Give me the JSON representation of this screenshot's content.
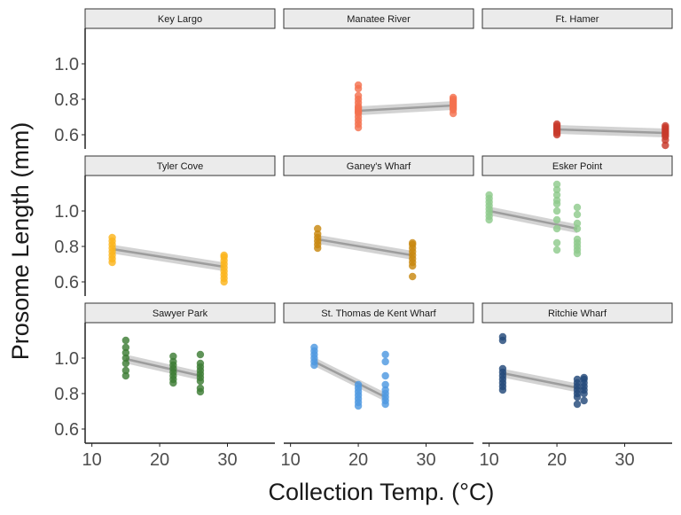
{
  "chart_data": {
    "type": "scatter",
    "xlabel": "Collection Temp. (°C)",
    "ylabel": "Prosome Length (mm)",
    "xlim": [
      9,
      37
    ],
    "ylim": [
      0.52,
      1.2
    ],
    "x_ticks": [
      10,
      20,
      30
    ],
    "y_ticks": [
      0.6,
      0.8,
      1.0
    ],
    "x_tick_labels": [
      "10",
      "20",
      "30"
    ],
    "y_tick_labels": [
      "0.6",
      "0.8",
      "1.0"
    ],
    "grid": false,
    "layout": "facet grid 3x3",
    "panels": [
      {
        "title": "Key Largo",
        "color": "#e8e8e8",
        "groups": [],
        "fit": null
      },
      {
        "title": "Manatee River",
        "color": "#f4714f",
        "groups": [
          {
            "x": 20,
            "y": [
              0.64,
              0.66,
              0.68,
              0.7,
              0.72,
              0.73,
              0.74,
              0.75,
              0.76,
              0.78,
              0.8,
              0.82,
              0.86,
              0.88
            ]
          },
          {
            "x": 34,
            "y": [
              0.72,
              0.74,
              0.75,
              0.76,
              0.77,
              0.78,
              0.79,
              0.8,
              0.81
            ]
          }
        ],
        "fit": {
          "x": [
            20,
            34
          ],
          "y": [
            0.735,
            0.765
          ]
        }
      },
      {
        "title": "Ft. Hamer",
        "color": "#c8392b",
        "groups": [
          {
            "x": 20,
            "y": [
              0.6,
              0.61,
              0.62,
              0.63,
              0.64,
              0.65,
              0.66
            ]
          },
          {
            "x": 36,
            "y": [
              0.54,
              0.57,
              0.59,
              0.6,
              0.61,
              0.62,
              0.63,
              0.64,
              0.65
            ]
          }
        ],
        "fit": {
          "x": [
            20,
            36
          ],
          "y": [
            0.63,
            0.61
          ]
        }
      },
      {
        "title": "Tyler Cove",
        "color": "#fbb41c",
        "groups": [
          {
            "x": 13,
            "y": [
              0.71,
              0.73,
              0.75,
              0.77,
              0.79,
              0.81,
              0.83,
              0.85
            ]
          },
          {
            "x": 29.5,
            "y": [
              0.6,
              0.62,
              0.64,
              0.66,
              0.68,
              0.7,
              0.72,
              0.74,
              0.75
            ]
          }
        ],
        "fit": {
          "x": [
            13,
            29.5
          ],
          "y": [
            0.785,
            0.685
          ]
        }
      },
      {
        "title": "Ganey's Wharf",
        "color": "#c8880f",
        "groups": [
          {
            "x": 14,
            "y": [
              0.79,
              0.81,
              0.83,
              0.85,
              0.87,
              0.9
            ]
          },
          {
            "x": 28,
            "y": [
              0.63,
              0.69,
              0.71,
              0.73,
              0.75,
              0.77,
              0.79,
              0.81,
              0.82
            ]
          }
        ],
        "fit": {
          "x": [
            14,
            28
          ],
          "y": [
            0.84,
            0.75
          ]
        }
      },
      {
        "title": "Esker Point",
        "color": "#8fca8c",
        "groups": [
          {
            "x": 10,
            "y": [
              0.95,
              0.97,
              0.99,
              1.01,
              1.03,
              1.05,
              1.07,
              1.09
            ]
          },
          {
            "x": 20,
            "y": [
              0.78,
              0.82,
              0.9,
              0.95,
              1.0,
              1.04,
              1.06,
              1.09,
              1.12,
              1.15
            ]
          },
          {
            "x": 23,
            "y": [
              0.76,
              0.78,
              0.8,
              0.82,
              0.84,
              0.9,
              0.93,
              0.98,
              1.02
            ]
          }
        ],
        "fit": {
          "x": [
            10,
            23
          ],
          "y": [
            1.0,
            0.9
          ]
        }
      },
      {
        "title": "Sawyer Park",
        "color": "#3d7d35",
        "groups": [
          {
            "x": 15,
            "y": [
              0.9,
              0.93,
              0.97,
              1.0,
              1.03,
              1.06,
              1.1
            ]
          },
          {
            "x": 22,
            "y": [
              0.86,
              0.88,
              0.9,
              0.92,
              0.94,
              0.96,
              0.98,
              1.01
            ]
          },
          {
            "x": 26,
            "y": [
              0.81,
              0.83,
              0.87,
              0.89,
              0.91,
              0.93,
              0.95,
              0.97,
              1.02
            ]
          }
        ],
        "fit": {
          "x": [
            15,
            26
          ],
          "y": [
            0.995,
            0.9
          ]
        }
      },
      {
        "title": "St. Thomas de Kent Wharf",
        "color": "#4e98e0",
        "groups": [
          {
            "x": 13.5,
            "y": [
              0.96,
              0.98,
              1.0,
              1.02,
              1.04,
              1.06
            ]
          },
          {
            "x": 20,
            "y": [
              0.73,
              0.75,
              0.77,
              0.79,
              0.81,
              0.83,
              0.85
            ]
          },
          {
            "x": 24,
            "y": [
              0.74,
              0.76,
              0.78,
              0.8,
              0.82,
              0.85,
              0.9,
              0.98,
              1.02
            ]
          }
        ],
        "fit": {
          "x": [
            13.5,
            24
          ],
          "y": [
            0.98,
            0.78
          ]
        }
      },
      {
        "title": "Ritchie Wharf",
        "color": "#23497a",
        "groups": [
          {
            "x": 12,
            "y": [
              0.82,
              0.84,
              0.86,
              0.88,
              0.9,
              0.92,
              0.94,
              1.1,
              1.12
            ]
          },
          {
            "x": 23,
            "y": [
              0.74,
              0.78,
              0.8,
              0.82,
              0.84,
              0.86,
              0.88
            ]
          },
          {
            "x": 24,
            "y": [
              0.76,
              0.8,
              0.82,
              0.84,
              0.86,
              0.88,
              0.89
            ]
          }
        ],
        "fit": {
          "x": [
            12,
            24
          ],
          "y": [
            0.915,
            0.825
          ]
        }
      }
    ]
  }
}
